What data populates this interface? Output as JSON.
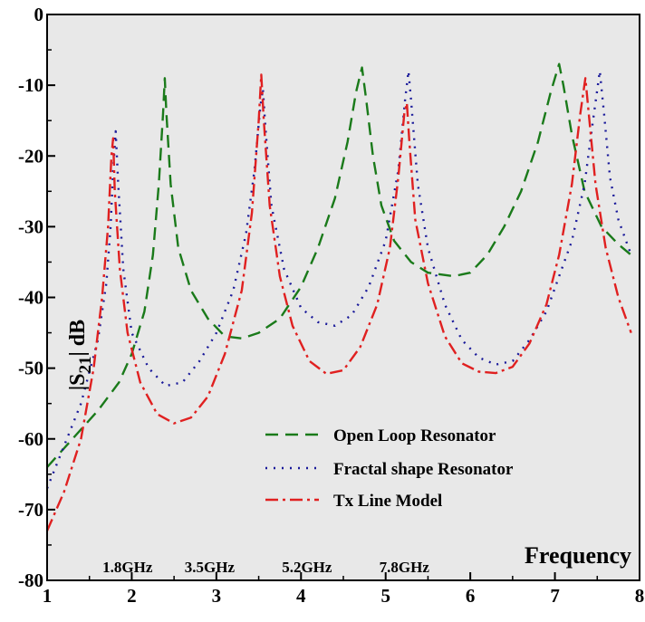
{
  "chart_data": {
    "type": "line",
    "title": "",
    "xlabel": "Frequency",
    "ylabel": {
      "prefix": "|S",
      "subscript": "21",
      "suffix": "| dB"
    },
    "xlim": [
      1,
      8
    ],
    "ylim": [
      -80,
      0
    ],
    "xticks": [
      1,
      2,
      3,
      4,
      5,
      6,
      7,
      8
    ],
    "yticks": [
      0,
      -10,
      -20,
      -30,
      -40,
      -50,
      -60,
      -70,
      -80
    ],
    "grid": false,
    "background": "#e8e8e8",
    "legend_position": "bottom-right",
    "annotations": [
      {
        "text": "1.8GHz",
        "x": 1.95
      },
      {
        "text": "3.5GHz",
        "x": 2.92
      },
      {
        "text": "5.2GHz",
        "x": 4.07
      },
      {
        "text": "7.8GHz",
        "x": 5.22
      }
    ],
    "series": [
      {
        "name": "Open Loop Resonator",
        "color": "#1a7a1a",
        "dash": "14,8",
        "points": [
          [
            1.0,
            -64
          ],
          [
            1.3,
            -60
          ],
          [
            1.6,
            -56
          ],
          [
            1.85,
            -52
          ],
          [
            2.0,
            -48
          ],
          [
            2.15,
            -42
          ],
          [
            2.25,
            -34
          ],
          [
            2.32,
            -24
          ],
          [
            2.37,
            -14
          ],
          [
            2.39,
            -9
          ],
          [
            2.41,
            -14
          ],
          [
            2.46,
            -24
          ],
          [
            2.55,
            -33
          ],
          [
            2.7,
            -39
          ],
          [
            2.9,
            -43
          ],
          [
            3.1,
            -45.5
          ],
          [
            3.3,
            -45.8
          ],
          [
            3.5,
            -45
          ],
          [
            3.75,
            -43
          ],
          [
            4.0,
            -38.5
          ],
          [
            4.2,
            -33
          ],
          [
            4.4,
            -26
          ],
          [
            4.55,
            -18
          ],
          [
            4.65,
            -11
          ],
          [
            4.72,
            -7.5
          ],
          [
            4.77,
            -12
          ],
          [
            4.85,
            -20
          ],
          [
            4.95,
            -27
          ],
          [
            5.1,
            -32
          ],
          [
            5.3,
            -35
          ],
          [
            5.5,
            -36.5
          ],
          [
            5.8,
            -37
          ],
          [
            6.0,
            -36.5
          ],
          [
            6.2,
            -34
          ],
          [
            6.4,
            -30
          ],
          [
            6.6,
            -25
          ],
          [
            6.8,
            -18
          ],
          [
            6.95,
            -11
          ],
          [
            7.05,
            -7
          ],
          [
            7.1,
            -10
          ],
          [
            7.2,
            -17
          ],
          [
            7.35,
            -25
          ],
          [
            7.55,
            -30
          ],
          [
            7.75,
            -32.5
          ],
          [
            7.9,
            -34
          ]
        ]
      },
      {
        "name": "Fractal shape Resonator",
        "color": "#1a1a9a",
        "dash": "2,7",
        "points": [
          [
            1.0,
            -67
          ],
          [
            1.2,
            -61
          ],
          [
            1.4,
            -55
          ],
          [
            1.6,
            -46
          ],
          [
            1.7,
            -38
          ],
          [
            1.75,
            -30
          ],
          [
            1.78,
            -22
          ],
          [
            1.81,
            -16.5
          ],
          [
            1.84,
            -24
          ],
          [
            1.9,
            -36
          ],
          [
            2.0,
            -45
          ],
          [
            2.2,
            -50
          ],
          [
            2.4,
            -52.5
          ],
          [
            2.6,
            -52
          ],
          [
            2.8,
            -49
          ],
          [
            3.0,
            -45
          ],
          [
            3.2,
            -39
          ],
          [
            3.35,
            -31
          ],
          [
            3.45,
            -22
          ],
          [
            3.52,
            -13
          ],
          [
            3.55,
            -10.5
          ],
          [
            3.58,
            -16
          ],
          [
            3.65,
            -27
          ],
          [
            3.8,
            -36
          ],
          [
            4.0,
            -41.5
          ],
          [
            4.2,
            -43.5
          ],
          [
            4.4,
            -44
          ],
          [
            4.6,
            -42.5
          ],
          [
            4.8,
            -38.5
          ],
          [
            5.0,
            -32
          ],
          [
            5.15,
            -22
          ],
          [
            5.23,
            -12
          ],
          [
            5.27,
            -8
          ],
          [
            5.3,
            -12
          ],
          [
            5.38,
            -24
          ],
          [
            5.5,
            -33
          ],
          [
            5.7,
            -41
          ],
          [
            5.9,
            -46
          ],
          [
            6.1,
            -48.5
          ],
          [
            6.3,
            -49.5
          ],
          [
            6.5,
            -49
          ],
          [
            6.7,
            -46
          ],
          [
            6.9,
            -42
          ],
          [
            7.05,
            -37
          ],
          [
            7.2,
            -32
          ],
          [
            7.35,
            -24
          ],
          [
            7.45,
            -15
          ],
          [
            7.53,
            -8
          ],
          [
            7.58,
            -14
          ],
          [
            7.65,
            -23
          ],
          [
            7.75,
            -29
          ],
          [
            7.9,
            -34
          ]
        ]
      },
      {
        "name": "Tx Line Model",
        "color": "#e02020",
        "dash": "14,5,3,5",
        "points": [
          [
            1.0,
            -73
          ],
          [
            1.2,
            -67.5
          ],
          [
            1.4,
            -60
          ],
          [
            1.55,
            -50
          ],
          [
            1.65,
            -40
          ],
          [
            1.72,
            -30
          ],
          [
            1.76,
            -20
          ],
          [
            1.78,
            -17.5
          ],
          [
            1.8,
            -25
          ],
          [
            1.86,
            -36
          ],
          [
            1.95,
            -45
          ],
          [
            2.1,
            -52
          ],
          [
            2.3,
            -56.5
          ],
          [
            2.5,
            -57.8
          ],
          [
            2.7,
            -57
          ],
          [
            2.9,
            -54
          ],
          [
            3.1,
            -48
          ],
          [
            3.3,
            -39
          ],
          [
            3.42,
            -28
          ],
          [
            3.5,
            -15
          ],
          [
            3.53,
            -8.5
          ],
          [
            3.56,
            -15
          ],
          [
            3.63,
            -27
          ],
          [
            3.75,
            -37
          ],
          [
            3.9,
            -44
          ],
          [
            4.1,
            -49
          ],
          [
            4.3,
            -50.8
          ],
          [
            4.5,
            -50.3
          ],
          [
            4.7,
            -47
          ],
          [
            4.9,
            -41
          ],
          [
            5.05,
            -33
          ],
          [
            5.15,
            -23
          ],
          [
            5.22,
            -14
          ],
          [
            5.25,
            -12.5
          ],
          [
            5.28,
            -18
          ],
          [
            5.35,
            -29
          ],
          [
            5.5,
            -38
          ],
          [
            5.7,
            -45.5
          ],
          [
            5.9,
            -49.3
          ],
          [
            6.1,
            -50.5
          ],
          [
            6.3,
            -50.7
          ],
          [
            6.5,
            -49.8
          ],
          [
            6.7,
            -46.5
          ],
          [
            6.9,
            -41
          ],
          [
            7.05,
            -34
          ],
          [
            7.2,
            -24
          ],
          [
            7.3,
            -14
          ],
          [
            7.36,
            -9
          ],
          [
            7.4,
            -14
          ],
          [
            7.48,
            -24
          ],
          [
            7.6,
            -33
          ],
          [
            7.75,
            -40
          ],
          [
            7.9,
            -45
          ]
        ]
      }
    ]
  }
}
